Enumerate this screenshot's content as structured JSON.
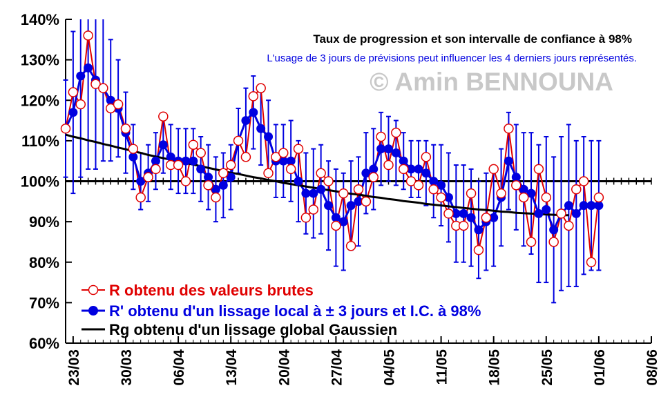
{
  "chart_data": {
    "type": "line",
    "title": "Taux de progression et son intervalle de confiance à 98%",
    "subtitle": "L'usage de 3 jours de prévisions peut influencer les 4 derniers jours représentés.",
    "watermark": "© Amin BENNOUNA",
    "ylim": [
      60,
      140
    ],
    "yticks": [
      "60%",
      "70%",
      "80%",
      "90%",
      "100%",
      "110%",
      "120%",
      "130%",
      "140%"
    ],
    "xticks": [
      "23/03",
      "30/03",
      "06/04",
      "13/04",
      "20/04",
      "27/04",
      "04/05",
      "11/05",
      "18/05",
      "25/05",
      "01/06",
      "08/06"
    ],
    "x_start": "22/03",
    "x_end": "08/06",
    "x_step_days": 1,
    "reference_line": 100,
    "grid": false,
    "legend_position": "bottom-left",
    "colors": {
      "raw": "#e00000",
      "smooth": "#0000e0",
      "gaussian": "#000000",
      "reference": "#000000"
    },
    "series": [
      {
        "name": "R obtenu des valeurs brutes",
        "key": "raw",
        "style": "open-circle-line",
        "values": [
          113,
          122,
          119,
          136,
          124,
          123,
          118,
          119,
          113,
          108,
          96,
          101,
          103,
          116,
          104,
          104,
          100,
          109,
          107,
          99,
          96,
          102,
          104,
          110,
          106,
          121,
          123,
          102,
          106,
          107,
          103,
          108,
          91,
          93,
          102,
          100,
          89,
          97,
          84,
          98,
          95,
          101,
          111,
          104,
          112,
          103,
          100,
          99,
          106,
          98,
          96,
          92,
          89,
          89,
          97,
          83,
          91,
          103,
          97,
          113,
          99,
          96,
          85,
          103,
          96,
          85,
          92,
          89,
          98,
          100,
          80,
          96
        ]
      },
      {
        "name": "R' obtenu d'un lissage local à ± 3 jours et I.C. à 98%",
        "key": "smooth",
        "style": "filled-circle-line-errorbars",
        "values": [
          113,
          117,
          126,
          128,
          125,
          123,
          120,
          118,
          112,
          106,
          100,
          102,
          105,
          109,
          106,
          105,
          105,
          105,
          103,
          101,
          98,
          99,
          101,
          110,
          115,
          117,
          113,
          111,
          105,
          105,
          105,
          100,
          97,
          97,
          98,
          94,
          91,
          90,
          94,
          95,
          102,
          103,
          108,
          108,
          107,
          105,
          103,
          103,
          102,
          100,
          99,
          96,
          92,
          92,
          91,
          88,
          90,
          91,
          96,
          105,
          101,
          98,
          97,
          92,
          93,
          88,
          92,
          94,
          92,
          94,
          94,
          94
        ],
        "errors": [
          12,
          20,
          25,
          25,
          22,
          18,
          15,
          12,
          10,
          8,
          7,
          7,
          7,
          7,
          8,
          8,
          8,
          8,
          8,
          8,
          8,
          8,
          8,
          8,
          8,
          9,
          9,
          9,
          9,
          9,
          10,
          10,
          10,
          11,
          11,
          11,
          12,
          12,
          11,
          11,
          10,
          10,
          9,
          8,
          8,
          7,
          7,
          7,
          8,
          9,
          10,
          11,
          12,
          12,
          12,
          12,
          12,
          12,
          12,
          12,
          13,
          14,
          15,
          17,
          18,
          18,
          19,
          20,
          18,
          17,
          16,
          16
        ]
      },
      {
        "name": "Rg obtenu d'un lissage global Gaussien",
        "key": "gaussian",
        "style": "line",
        "values": [
          111.5,
          111.0,
          110.6,
          110.1,
          109.7,
          109.2,
          108.8,
          108.3,
          107.9,
          107.4,
          107.0,
          106.5,
          106.1,
          105.7,
          105.3,
          104.9,
          104.5,
          104.1,
          103.7,
          103.3,
          102.9,
          102.5,
          102.1,
          101.8,
          101.4,
          101.0,
          100.7,
          100.3,
          100.0,
          99.6,
          99.3,
          99.0,
          98.7,
          98.4,
          98.1,
          97.8,
          97.5,
          97.2,
          96.9,
          96.7,
          96.4,
          96.1,
          95.9,
          95.6,
          95.4,
          95.1,
          94.9,
          94.7,
          94.4,
          94.2,
          94.0,
          93.8,
          93.6,
          93.4,
          93.2,
          93.0,
          92.9,
          92.7,
          92.5,
          92.4,
          92.2,
          92.1,
          92.0,
          91.9,
          91.8,
          91.7,
          91.6,
          91.6
        ]
      }
    ]
  }
}
